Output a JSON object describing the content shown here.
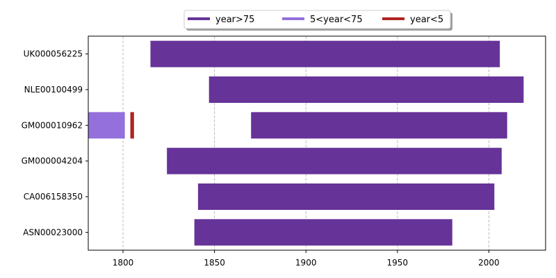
{
  "chart_data": {
    "type": "bar",
    "orientation": "horizontal",
    "xlim": [
      1781,
      2031
    ],
    "xticks": [
      1800,
      1850,
      1900,
      1950,
      2000
    ],
    "grid": "x-dashed",
    "legend_placement": "top-center",
    "colors": {
      "year>75": "#663399",
      "5<year<75": "#9370db",
      "year<5": "#b22222"
    },
    "legend": [
      {
        "label": "year>75",
        "color": "#663399"
      },
      {
        "label": "5<year<75",
        "color": "#9370db"
      },
      {
        "label": "year<5",
        "color": "#b22222"
      }
    ],
    "stations": [
      {
        "name": "UK000056225",
        "segments": [
          {
            "start": 1815,
            "end": 2006,
            "class": "year>75"
          }
        ]
      },
      {
        "name": "NLE00100499",
        "segments": [
          {
            "start": 1847,
            "end": 2019,
            "class": "year>75"
          }
        ]
      },
      {
        "name": "GM000010962",
        "segments": [
          {
            "start": 1781,
            "end": 1801,
            "class": "5<year<75"
          },
          {
            "start": 1804,
            "end": 1806,
            "class": "year<5"
          },
          {
            "start": 1870,
            "end": 2010,
            "class": "year>75"
          }
        ]
      },
      {
        "name": "GM000004204",
        "segments": [
          {
            "start": 1824,
            "end": 2007,
            "class": "year>75"
          }
        ]
      },
      {
        "name": "CA006158350",
        "segments": [
          {
            "start": 1841,
            "end": 2003,
            "class": "year>75"
          }
        ]
      },
      {
        "name": "ASN00023000",
        "segments": [
          {
            "start": 1839,
            "end": 1980,
            "class": "year>75"
          }
        ]
      }
    ]
  }
}
